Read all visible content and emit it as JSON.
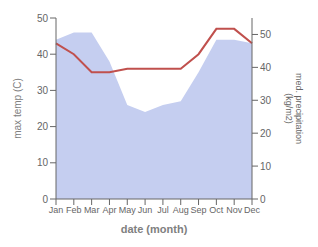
{
  "chart_data": {
    "type": "line",
    "categories": [
      "Jan",
      "Feb",
      "Mar",
      "Apr",
      "May",
      "Jun",
      "Jul",
      "Aug",
      "Sep",
      "Oct",
      "Nov",
      "Dec"
    ],
    "series": [
      {
        "type": "area",
        "color": "#c5cef0",
        "values": [
          44,
          46,
          46,
          38,
          26,
          24,
          26,
          27,
          35,
          44,
          44,
          43
        ]
      },
      {
        "type": "line",
        "color": "#c0504d",
        "values": [
          43,
          40,
          35,
          35,
          36,
          36,
          36,
          36,
          40,
          47,
          47,
          43
        ]
      }
    ],
    "xlabel": "date (month)",
    "ylabel": "max temp (C)",
    "y2label": "med. precipitation\n(kg/m2)",
    "ylim": [
      0,
      50
    ],
    "yticks": [
      0,
      10,
      20,
      30,
      40,
      50
    ],
    "y2lim": [
      0,
      55
    ],
    "y2ticks": [
      0,
      10,
      20,
      30,
      40,
      50
    ],
    "grid": false
  }
}
